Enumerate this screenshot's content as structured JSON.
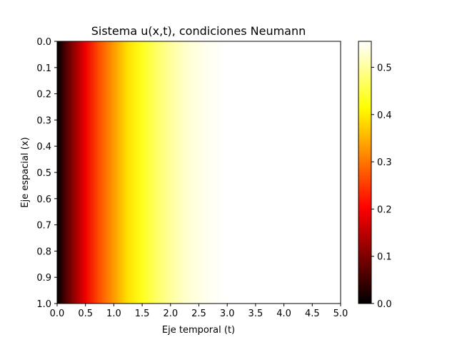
{
  "chart_data": {
    "type": "heatmap",
    "title": "Sistema u(x,t), condiciones Neumann",
    "xlabel": "Eje temporal (t)",
    "ylabel": "Eje espacial (x)",
    "xlim": [
      0,
      5
    ],
    "ylim": [
      1,
      0
    ],
    "xticks": [
      "0.0",
      "0.5",
      "1.0",
      "1.5",
      "2.0",
      "2.5",
      "3.0",
      "3.5",
      "4.0",
      "4.5",
      "5.0"
    ],
    "yticks": [
      "0.0",
      "0.1",
      "0.2",
      "0.3",
      "0.4",
      "0.5",
      "0.6",
      "0.7",
      "0.8",
      "0.9",
      "1.0"
    ],
    "colormap": "hot",
    "vmin": 0.0,
    "vmax": 0.555,
    "colorbar_ticks": [
      "0.0",
      "0.1",
      "0.2",
      "0.3",
      "0.4",
      "0.5"
    ],
    "profile_over_t": {
      "t": [
        0.0,
        0.25,
        0.5,
        0.75,
        1.0,
        1.25,
        1.5,
        1.75,
        2.0,
        2.25,
        2.5,
        2.75,
        3.0,
        3.5,
        4.0,
        4.5,
        5.0
      ],
      "u": [
        0.0,
        0.1,
        0.19,
        0.27,
        0.33,
        0.39,
        0.43,
        0.47,
        0.5,
        0.525,
        0.54,
        0.55,
        0.555,
        0.555,
        0.555,
        0.555,
        0.555
      ]
    },
    "u_constant_along_x": true
  }
}
